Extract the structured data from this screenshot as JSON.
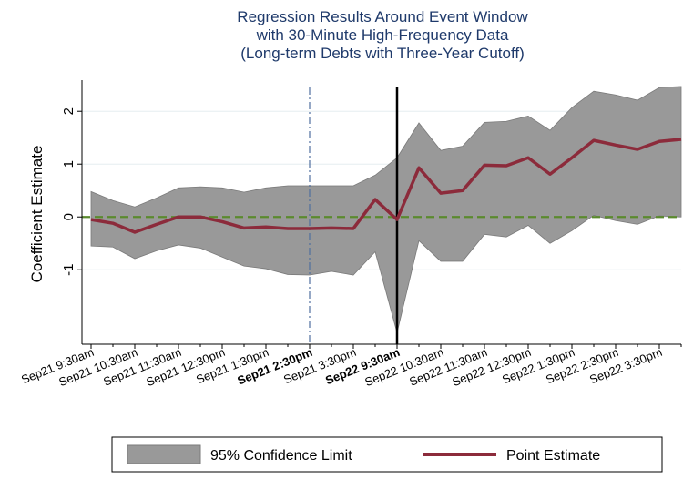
{
  "chart_data": {
    "type": "band-line",
    "title": [
      "Regression Results Around Event Window",
      "with 30-Minute High-Frequency Data",
      "(Long-term Debts with Three-Year Cutoff)"
    ],
    "y_label": "Coefficient Estimate",
    "categories": [
      "Sep21 9:30am",
      null,
      "Sep21 10:30am",
      null,
      "Sep21 11:30am",
      null,
      "Sep21 12:30pm",
      null,
      "Sep21 1:30pm",
      null,
      "Sep21 2:30pm",
      null,
      "Sep21 3:30pm",
      null,
      "Sep22 9:30am",
      null,
      "Sep22 10:30am",
      null,
      "Sep22 11:30am",
      null,
      "Sep22 12:30pm",
      null,
      "Sep22 1:30pm",
      null,
      "Sep22 2:30pm",
      null,
      "Sep22 3:30pm",
      null
    ],
    "bold_ticks": [
      10,
      14
    ],
    "series": [
      {
        "name": "95% Confidence Limit",
        "color": "#999999",
        "upper": [
          0.48,
          0.31,
          0.19,
          0.36,
          0.55,
          0.57,
          0.55,
          0.47,
          0.55,
          0.59,
          0.59,
          0.59,
          0.59,
          0.79,
          1.12,
          1.78,
          1.26,
          1.34,
          1.79,
          1.81,
          1.91,
          1.64,
          2.07,
          2.38,
          2.31,
          2.21,
          2.45,
          2.47
        ],
        "lower": [
          -0.55,
          -0.57,
          -0.79,
          -0.64,
          -0.53,
          -0.59,
          -0.76,
          -0.93,
          -0.98,
          -1.09,
          -1.1,
          -1.03,
          -1.1,
          -0.66,
          -2.19,
          -0.45,
          -0.84,
          -0.84,
          -0.33,
          -0.38,
          -0.16,
          -0.5,
          -0.26,
          0.03,
          -0.07,
          -0.14,
          0.02,
          0.0
        ]
      },
      {
        "name": "Point Estimate",
        "color": "#8c2b3b",
        "values": [
          -0.05,
          -0.12,
          -0.29,
          -0.14,
          0,
          0,
          -0.09,
          -0.21,
          -0.19,
          -0.22,
          -0.22,
          -0.21,
          -0.22,
          0.33,
          -0.05,
          0.93,
          0.45,
          0.5,
          0.98,
          0.97,
          1.12,
          0.81,
          1.12,
          1.45,
          1.36,
          1.28,
          1.43,
          1.47
        ]
      }
    ],
    "ylim": [
      -2.41,
      2.59
    ],
    "yticks": [
      -1,
      0,
      1,
      2
    ],
    "grid": true,
    "reference_line": {
      "value": 0,
      "color": "#5b8a2e"
    },
    "vlines": [
      {
        "at": 10,
        "color": "#4f6f9f",
        "dash": "8 3 2 3"
      },
      {
        "at": 14,
        "color": "#000000",
        "dash": "none"
      }
    ],
    "legend": "bottom"
  }
}
